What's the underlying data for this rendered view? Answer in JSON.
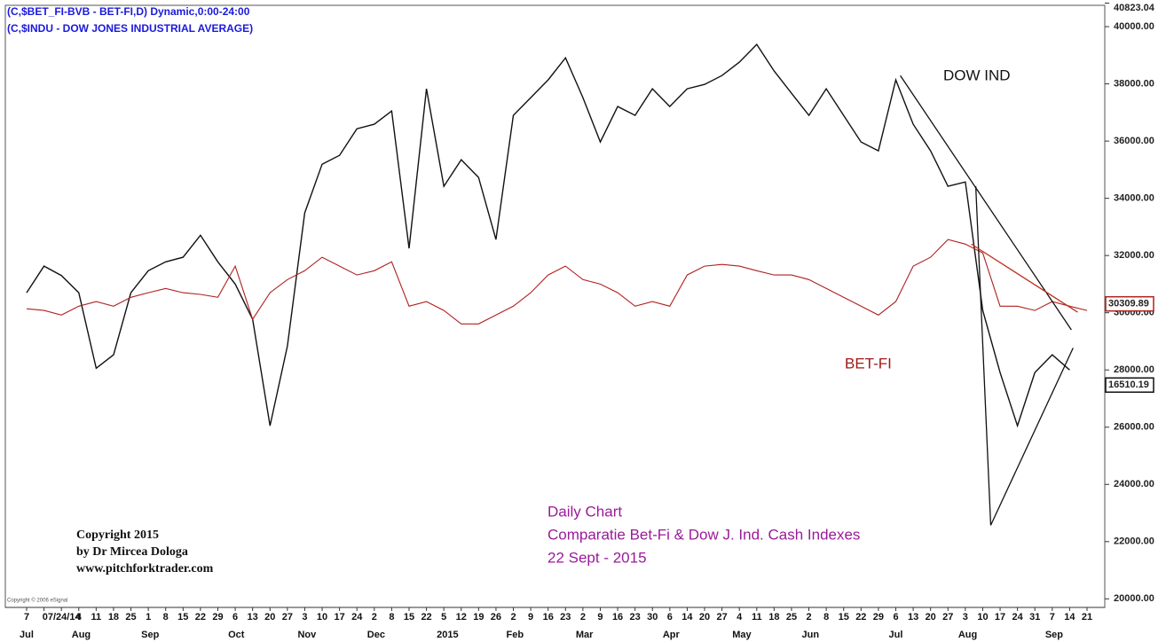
{
  "chart_data": {
    "type": "line",
    "header": [
      "(C,$BET_FI-BVB - BET-FI,D) Dynamic,0:00-24:00",
      "(C,$INDU - DOW JONES INDUSTRIAL AVERAGE)"
    ],
    "categories": [
      "7",
      null,
      "07/24/14",
      "4",
      "11",
      "18",
      "25",
      "1",
      "8",
      "15",
      "22",
      "29",
      "6",
      "13",
      "20",
      "27",
      "3",
      "10",
      "17",
      "24",
      "2",
      "8",
      "15",
      "22",
      "5",
      "12",
      "19",
      "26",
      "2",
      "9",
      "16",
      "23",
      "2",
      "9",
      "16",
      "23",
      "30",
      "6",
      "14",
      "20",
      "27",
      "4",
      "11",
      "18",
      "25",
      "2",
      "8",
      "15",
      "22",
      "29",
      "6",
      "13",
      "20",
      "27",
      "3",
      "10",
      "17",
      "24",
      "31",
      "7",
      "14",
      "21"
    ],
    "months": [
      "Jul",
      null,
      null,
      "Aug",
      null,
      null,
      null,
      "Sep",
      null,
      null,
      null,
      null,
      "Oct",
      null,
      null,
      null,
      "Nov",
      null,
      null,
      null,
      "Dec",
      null,
      null,
      null,
      "2015",
      null,
      null,
      null,
      "Feb",
      null,
      null,
      null,
      "Mar",
      null,
      null,
      null,
      null,
      "Apr",
      null,
      null,
      null,
      "May",
      null,
      null,
      null,
      "Jun",
      null,
      null,
      null,
      null,
      "Jul",
      null,
      null,
      null,
      "Aug",
      null,
      null,
      null,
      null,
      "Sep",
      null,
      null
    ],
    "series": [
      {
        "name": "DOW IND",
        "color": "#111111",
        "price_label": "16510.19",
        "values": [
          30700,
          31630,
          31300,
          30700,
          28060,
          28530,
          30700,
          31470,
          31780,
          31940,
          32710,
          31780,
          31000,
          29770,
          26050,
          28840,
          33490,
          35190,
          35500,
          36430,
          36590,
          37050,
          32250,
          37830,
          34420,
          35350,
          34730,
          32560,
          36900,
          37520,
          38140,
          38910,
          37520,
          35970,
          37210,
          36900,
          37830,
          37210,
          37830,
          37980,
          38290,
          38760,
          39380,
          38450,
          37670,
          36900,
          37830,
          36900,
          35970,
          35660,
          38140,
          36590,
          35660,
          34420,
          34570,
          30080,
          27910,
          26050,
          27910,
          28530,
          28000,
          null
        ]
      },
      {
        "name": "BET-FI",
        "color": "#b02020",
        "price_label": 30309.89,
        "values": [
          30140,
          30080,
          29920,
          30230,
          30390,
          30230,
          30540,
          30700,
          30850,
          30700,
          30640,
          30540,
          31630,
          29770,
          30700,
          31160,
          31470,
          31940,
          31630,
          31320,
          31470,
          31780,
          30230,
          30390,
          30080,
          29610,
          29610,
          29920,
          30230,
          30700,
          31320,
          31630,
          31160,
          31000,
          30700,
          30230,
          30390,
          30230,
          31320,
          31630,
          31690,
          31630,
          31470,
          31320,
          31320,
          31160,
          30850,
          30540,
          30230,
          29920,
          30390,
          31630,
          31940,
          32560,
          32400,
          32090,
          30230,
          30230,
          30080,
          30390,
          30230,
          30080
        ]
      }
    ],
    "trendlines": [
      {
        "color": "#111111",
        "start": [
          50.26,
          38290
        ],
        "end": [
          60.1,
          29400
        ]
      },
      {
        "color": "#111111",
        "start": [
          54.6,
          34420
        ],
        "end": [
          55.46,
          22570
        ]
      },
      {
        "color": "#111111",
        "start": [
          55.46,
          22570
        ],
        "end": [
          60.2,
          28770
        ]
      },
      {
        "color": "#c03020",
        "start": [
          54.34,
          32400
        ],
        "end": [
          60.46,
          30020
        ]
      }
    ],
    "ylim": [
      19700,
      40823.04
    ],
    "yticks": [
      {
        "value": 20000,
        "label": "20000.00"
      },
      {
        "value": 22000,
        "label": "22000.00"
      },
      {
        "value": 24000,
        "label": "24000.00"
      },
      {
        "value": 26000,
        "label": "26000.00"
      },
      {
        "value": 28000,
        "label": "28000.00"
      },
      {
        "value": 30000,
        "label": "30000.00"
      },
      {
        "value": 32000,
        "label": "32000.00"
      },
      {
        "value": 34000,
        "label": "34000.00"
      },
      {
        "value": 36000,
        "label": "36000.00"
      },
      {
        "value": 38000,
        "label": "38000.00"
      },
      {
        "value": 40000,
        "label": "40000.00"
      },
      40823.04
    ],
    "grid": false,
    "annotations": {
      "dow": "DOW IND",
      "bet": "BET-FI",
      "info": [
        "Daily Chart",
        "Comparatie Bet-Fi & Dow J. Ind. Cash Indexes",
        "22 Sept - 2015"
      ],
      "copyright": [
        "Copyright 2015",
        "by Dr Mircea Dologa",
        "www.pitchforktrader.com"
      ],
      "vendor": "Copyright © 2006 eSignal"
    }
  }
}
